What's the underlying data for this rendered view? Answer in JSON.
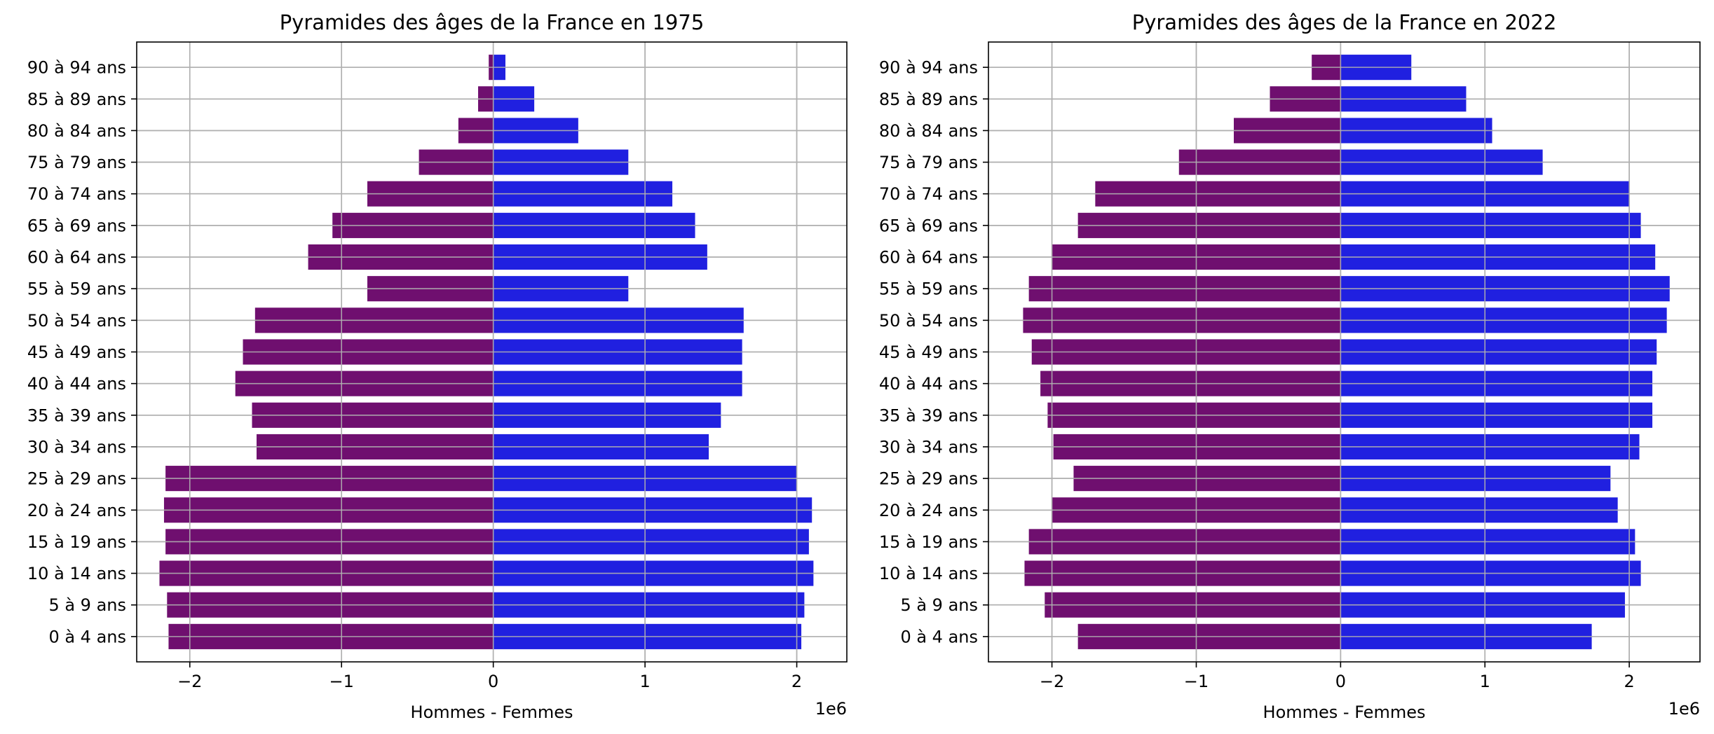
{
  "chart_data": [
    {
      "type": "bar",
      "orientation": "horizontal",
      "title": "Pyramides des âges de la France en 1975",
      "xlabel": "Hommes - Femmes",
      "ylabel": "",
      "offset_text": "1e6",
      "xlim": [
        -2.35,
        2.33
      ],
      "xticks": [
        -2,
        -1,
        0,
        1,
        2
      ],
      "xtick_labels": [
        "−2",
        "−1",
        "0",
        "1",
        "2"
      ],
      "grid": true,
      "categories": [
        "0 à 4 ans",
        "5 à 9 ans",
        "10 à 14 ans",
        "15 à 19 ans",
        "20 à 24 ans",
        "25 à 29 ans",
        "30 à 34 ans",
        "35 à 39 ans",
        "40 à 44 ans",
        "45 à 49 ans",
        "50 à 54 ans",
        "55 à 59 ans",
        "60 à 64 ans",
        "65 à 69 ans",
        "70 à 74 ans",
        "75 à 79 ans",
        "80 à 84 ans",
        "85 à 89 ans",
        "90 à 94 ans"
      ],
      "series": [
        {
          "values": [
            -2.14,
            -2.15,
            -2.2,
            -2.16,
            -2.17,
            -2.16,
            -1.56,
            -1.59,
            -1.7,
            -1.65,
            -1.57,
            -0.83,
            -1.22,
            -1.06,
            -0.83,
            -0.49,
            -0.23,
            -0.1,
            -0.03
          ],
          "color": "#6f0f6f"
        },
        {
          "values": [
            2.03,
            2.05,
            2.11,
            2.08,
            2.1,
            2.0,
            1.42,
            1.5,
            1.64,
            1.64,
            1.65,
            0.89,
            1.41,
            1.33,
            1.18,
            0.89,
            0.56,
            0.27,
            0.08
          ],
          "color": "#2020e0"
        }
      ]
    },
    {
      "type": "bar",
      "orientation": "horizontal",
      "title": "Pyramides des âges de la France en 2022",
      "xlabel": "Hommes - Femmes",
      "ylabel": "",
      "offset_text": "1e6",
      "xlim": [
        -2.44,
        2.49
      ],
      "xticks": [
        -2,
        -1,
        0,
        1,
        2
      ],
      "xtick_labels": [
        "−2",
        "−1",
        "0",
        "1",
        "2"
      ],
      "grid": true,
      "categories": [
        "0 à 4 ans",
        "5 à 9 ans",
        "10 à 14 ans",
        "15 à 19 ans",
        "20 à 24 ans",
        "25 à 29 ans",
        "30 à 34 ans",
        "35 à 39 ans",
        "40 à 44 ans",
        "45 à 49 ans",
        "50 à 54 ans",
        "55 à 59 ans",
        "60 à 64 ans",
        "65 à 69 ans",
        "70 à 74 ans",
        "75 à 79 ans",
        "80 à 84 ans",
        "85 à 89 ans",
        "90 à 94 ans"
      ],
      "series": [
        {
          "values": [
            -1.82,
            -2.05,
            -2.19,
            -2.16,
            -2.0,
            -1.85,
            -1.99,
            -2.03,
            -2.08,
            -2.14,
            -2.2,
            -2.16,
            -2.0,
            -1.82,
            -1.7,
            -1.12,
            -0.74,
            -0.49,
            -0.2
          ],
          "color": "#6f0f6f"
        },
        {
          "values": [
            1.74,
            1.97,
            2.08,
            2.04,
            1.92,
            1.87,
            2.07,
            2.16,
            2.16,
            2.19,
            2.26,
            2.28,
            2.18,
            2.08,
            2.0,
            1.4,
            1.05,
            0.87,
            0.49
          ],
          "color": "#2020e0"
        }
      ]
    }
  ]
}
